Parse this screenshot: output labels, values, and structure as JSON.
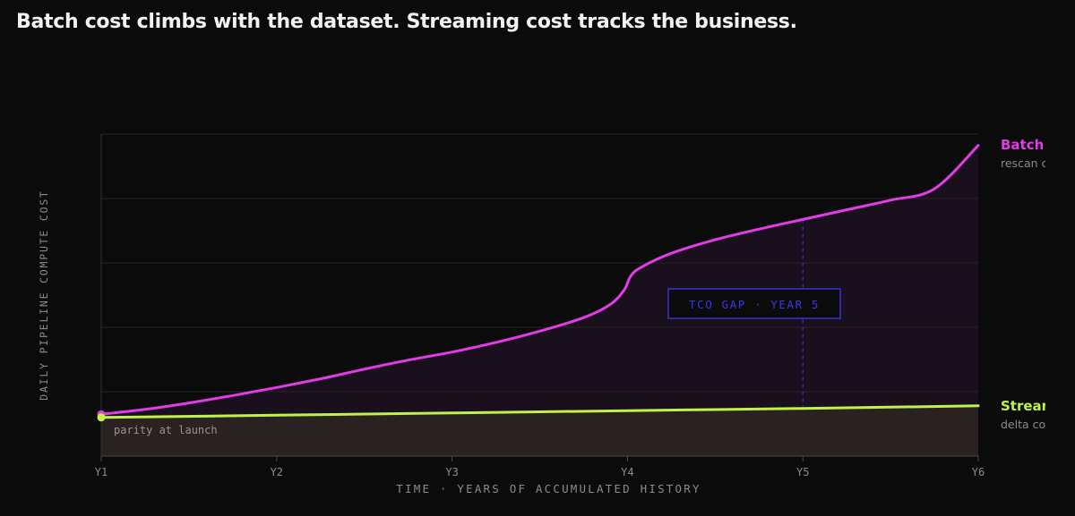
{
  "headline": "Batch cost climbs with the dataset. Streaming cost tracks the business.",
  "chart_data": {
    "type": "line",
    "title": "Batch cost climbs with the dataset. Streaming cost tracks the business.",
    "xlabel": "TIME · YEARS OF ACCUMULATED HISTORY",
    "ylabel": "DAILY PIPELINE COMPUTE COST",
    "x_ticks": [
      "Y1",
      "Y2",
      "Y3",
      "Y4",
      "Y5",
      "Y6"
    ],
    "xlim": [
      1,
      6
    ],
    "ylim": [
      0,
      100
    ],
    "grid": true,
    "series": [
      {
        "name": "Batch",
        "sublabel": "rescan c",
        "color": "#e23ce6",
        "points": [
          [
            1,
            13
          ],
          [
            1.25,
            14.5
          ],
          [
            1.5,
            16.5
          ],
          [
            1.75,
            18.8
          ],
          [
            2,
            21.3
          ],
          [
            2.25,
            24
          ],
          [
            2.5,
            27
          ],
          [
            2.75,
            29.8
          ],
          [
            3,
            32.3
          ],
          [
            3.25,
            35.3
          ],
          [
            3.5,
            38.8
          ],
          [
            3.75,
            43
          ],
          [
            3.9,
            47
          ],
          [
            3.98,
            51.5
          ],
          [
            4.02,
            56
          ],
          [
            4.08,
            58.7
          ],
          [
            4.25,
            63
          ],
          [
            4.5,
            67.2
          ],
          [
            4.75,
            70.5
          ],
          [
            5,
            73.5
          ],
          [
            5.25,
            76.5
          ],
          [
            5.5,
            79.5
          ],
          [
            5.75,
            83
          ],
          [
            6,
            96.5
          ]
        ]
      },
      {
        "name": "Stream",
        "sublabel": "delta co",
        "color": "#bff24a",
        "points": [
          [
            1,
            12
          ],
          [
            2,
            12.7
          ],
          [
            3,
            13.4
          ],
          [
            4,
            14.1
          ],
          [
            5,
            14.8
          ],
          [
            6,
            15.6
          ]
        ]
      }
    ],
    "annotations": [
      {
        "text": "TCO GAP · YEAR 5",
        "x": 5
      },
      {
        "text": "parity at launch",
        "x": 1
      }
    ]
  },
  "colors": {
    "background": "#0b0b0c",
    "grid": "#242428",
    "batch": "#e23ce6",
    "stream": "#bff24a",
    "tco": "#3c2fd6",
    "batch_fill": "#1a0f1d",
    "stream_fill": "#2a2220"
  }
}
